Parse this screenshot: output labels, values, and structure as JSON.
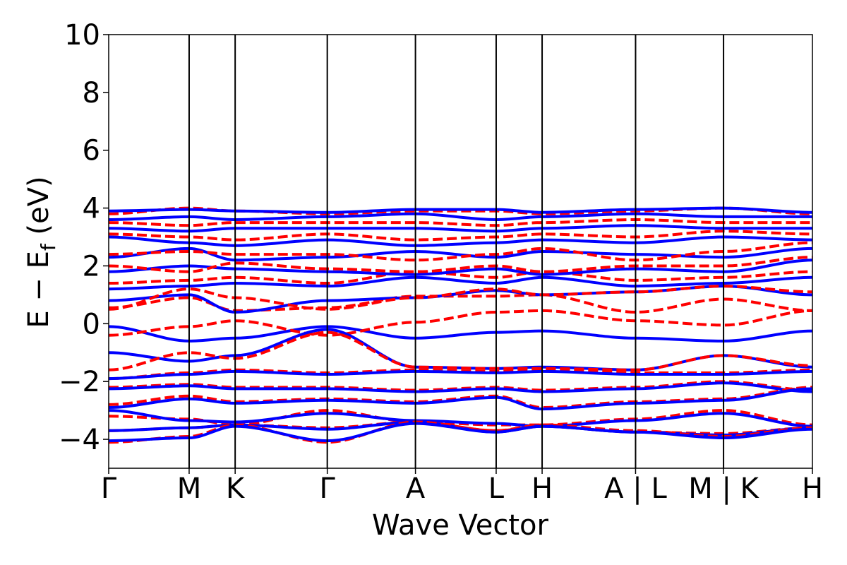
{
  "chart_data": {
    "type": "line",
    "xlabel": "Wave Vector",
    "ylabel": "E − E_f (eV)",
    "ylabel_main": "E − E",
    "ylabel_sub": "f",
    "ylabel_unit": " (eV)",
    "ylim": [
      -5,
      10
    ],
    "yticks": [
      {
        "value": -4,
        "label": "−4"
      },
      {
        "value": -2,
        "label": "−2"
      },
      {
        "value": 0,
        "label": "0"
      },
      {
        "value": 2,
        "label": "2"
      },
      {
        "value": 4,
        "label": "4"
      },
      {
        "value": 6,
        "label": "6"
      },
      {
        "value": 8,
        "label": "8"
      },
      {
        "value": 10,
        "label": "10"
      }
    ],
    "xlim": [
      0,
      1
    ],
    "kpoints": [
      {
        "label": "Γ",
        "x": 0.0
      },
      {
        "label": "M",
        "x": 0.1143
      },
      {
        "label": "K",
        "x": 0.1797
      },
      {
        "label": "Γ",
        "x": 0.3106
      },
      {
        "label": "A",
        "x": 0.4359
      },
      {
        "label": "L",
        "x": 0.5506
      },
      {
        "label": "H",
        "x": 0.6159
      },
      {
        "label": "A | L",
        "x": 0.7487
      },
      {
        "label": "M | K",
        "x": 0.8737
      },
      {
        "label": "H",
        "x": 1.0
      }
    ],
    "grid": false,
    "legend": "none",
    "colors": {
      "series_solid": "#0000ff",
      "series_dashed": "#ff0000"
    },
    "series": [
      {
        "style": "solid",
        "color": "#0000ff",
        "x": [
          0,
          0.1143,
          0.1797,
          0.3106,
          0.4359,
          0.5506,
          0.6159,
          0.7487,
          0.8737,
          1.0
        ],
        "y": [
          -0.1,
          -0.6,
          -0.5,
          -0.1,
          -0.5,
          -0.3,
          -0.25,
          -0.5,
          -0.6,
          -0.25
        ]
      },
      {
        "style": "dashed",
        "color": "#ff0000",
        "x": [
          0,
          0.1143,
          0.1797,
          0.3106,
          0.4359,
          0.5506,
          0.6159,
          0.7487,
          0.8737,
          1.0
        ],
        "y": [
          -0.4,
          -0.1,
          0.1,
          -0.4,
          0.05,
          0.4,
          0.45,
          0.1,
          -0.05,
          0.45
        ]
      },
      {
        "style": "dashed",
        "color": "#ff0000",
        "x": [
          0,
          0.1143,
          0.1797,
          0.3106,
          0.4359,
          0.5506,
          0.6159,
          0.7487,
          0.8737,
          1.0
        ],
        "y": [
          0.55,
          0.9,
          0.45,
          0.55,
          0.95,
          0.95,
          1.0,
          0.4,
          0.85,
          0.45
        ]
      },
      {
        "style": "solid",
        "color": "#0000ff",
        "x": [
          0,
          0.1143,
          0.1797,
          0.3106,
          0.4359,
          0.5506,
          0.6159,
          0.7487,
          0.8737,
          1.0
        ],
        "y": [
          -1.0,
          -1.3,
          -1.1,
          -0.2,
          -1.5,
          -1.55,
          -1.5,
          -1.6,
          -1.1,
          -1.5
        ]
      },
      {
        "style": "dashed",
        "color": "#ff0000",
        "x": [
          0,
          0.1143,
          0.1797,
          0.3106,
          0.4359,
          0.5506,
          0.6159,
          0.7487,
          0.8737,
          1.0
        ],
        "y": [
          -1.6,
          -1.0,
          -1.2,
          -0.3,
          -1.5,
          -1.55,
          -1.55,
          -1.6,
          -1.1,
          -1.45
        ]
      },
      {
        "style": "dashed",
        "color": "#ff0000",
        "x": [
          0,
          0.1143,
          0.1797,
          0.3106,
          0.4359,
          0.5506,
          0.6159,
          0.7487,
          0.8737,
          1.0
        ],
        "y": [
          -1.9,
          -1.7,
          -1.6,
          -1.7,
          -1.6,
          -1.65,
          -1.6,
          -1.7,
          -1.7,
          -1.6
        ]
      },
      {
        "style": "solid",
        "color": "#0000ff",
        "x": [
          0,
          0.1143,
          0.1797,
          0.3106,
          0.4359,
          0.5506,
          0.6159,
          0.7487,
          0.8737,
          1.0
        ],
        "y": [
          -1.9,
          -1.75,
          -1.65,
          -1.75,
          -1.65,
          -1.7,
          -1.65,
          -1.75,
          -1.75,
          -1.65
        ]
      },
      {
        "style": "dashed",
        "color": "#ff0000",
        "x": [
          0,
          0.1143,
          0.1797,
          0.3106,
          0.4359,
          0.5506,
          0.6159,
          0.7487,
          0.8737,
          1.0
        ],
        "y": [
          -2.2,
          -2.1,
          -2.2,
          -2.2,
          -2.3,
          -2.2,
          -2.3,
          -2.2,
          -2.0,
          -2.3
        ]
      },
      {
        "style": "solid",
        "color": "#0000ff",
        "x": [
          0,
          0.1143,
          0.1797,
          0.3106,
          0.4359,
          0.5506,
          0.6159,
          0.7487,
          0.8737,
          1.0
        ],
        "y": [
          -2.25,
          -2.15,
          -2.25,
          -2.25,
          -2.35,
          -2.25,
          -2.35,
          -2.25,
          -2.05,
          -2.35
        ]
      },
      {
        "style": "dashed",
        "color": "#ff0000",
        "x": [
          0,
          0.1143,
          0.1797,
          0.3106,
          0.4359,
          0.5506,
          0.6159,
          0.7487,
          0.8737,
          1.0
        ],
        "y": [
          -2.8,
          -2.5,
          -2.7,
          -2.6,
          -2.7,
          -2.5,
          -2.9,
          -2.7,
          -2.6,
          -2.2
        ]
      },
      {
        "style": "solid",
        "color": "#0000ff",
        "x": [
          0,
          0.1143,
          0.1797,
          0.3106,
          0.4359,
          0.5506,
          0.6159,
          0.7487,
          0.8737,
          1.0
        ],
        "y": [
          -2.9,
          -2.6,
          -2.75,
          -2.65,
          -2.75,
          -2.55,
          -2.95,
          -2.75,
          -2.65,
          -2.25
        ]
      },
      {
        "style": "dashed",
        "color": "#ff0000",
        "x": [
          0,
          0.1143,
          0.1797,
          0.3106,
          0.4359,
          0.5506,
          0.6159,
          0.7487,
          0.8737,
          1.0
        ],
        "y": [
          -3.2,
          -3.3,
          -3.5,
          -3.0,
          -3.4,
          -3.5,
          -3.5,
          -3.3,
          -3.0,
          -3.5
        ]
      },
      {
        "style": "solid",
        "color": "#0000ff",
        "x": [
          0,
          0.1143,
          0.1797,
          0.3106,
          0.4359,
          0.5506,
          0.6159,
          0.7487,
          0.8737,
          1.0
        ],
        "y": [
          -3.0,
          -3.35,
          -3.4,
          -3.1,
          -3.35,
          -3.45,
          -3.55,
          -3.35,
          -3.1,
          -3.55
        ]
      },
      {
        "style": "dashed",
        "color": "#ff0000",
        "x": [
          0,
          0.1143,
          0.1797,
          0.3106,
          0.4359,
          0.5506,
          0.6159,
          0.7487,
          0.8737,
          1.0
        ],
        "y": [
          -3.7,
          -3.6,
          -3.5,
          -3.6,
          -3.4,
          -3.7,
          -3.55,
          -3.75,
          -3.8,
          -3.6
        ]
      },
      {
        "style": "solid",
        "color": "#0000ff",
        "x": [
          0,
          0.1143,
          0.1797,
          0.3106,
          0.4359,
          0.5506,
          0.6159,
          0.7487,
          0.8737,
          1.0
        ],
        "y": [
          -3.7,
          -3.6,
          -3.5,
          -3.65,
          -3.4,
          -3.75,
          -3.55,
          -3.75,
          -3.85,
          -3.6
        ]
      },
      {
        "style": "dashed",
        "color": "#ff0000",
        "x": [
          0,
          0.1143,
          0.1797,
          0.3106,
          0.4359,
          0.5506,
          0.6159,
          0.7487,
          0.8737,
          1.0
        ],
        "y": [
          -4.1,
          -3.9,
          -3.5,
          -4.1,
          -3.4,
          -3.7,
          -3.5,
          -3.7,
          -3.9,
          -3.6
        ]
      },
      {
        "style": "solid",
        "color": "#0000ff",
        "x": [
          0,
          0.1143,
          0.1797,
          0.3106,
          0.4359,
          0.5506,
          0.6159,
          0.7487,
          0.8737,
          1.0
        ],
        "y": [
          -4.05,
          -3.95,
          -3.55,
          -4.05,
          -3.45,
          -3.75,
          -3.55,
          -3.75,
          -3.95,
          -3.65
        ]
      },
      {
        "style": "solid",
        "color": "#0000ff",
        "x": [
          0,
          0.1143,
          0.1797,
          0.3106,
          0.4359,
          0.5506,
          0.6159,
          0.7487,
          0.8737,
          1.0
        ],
        "y": [
          0.8,
          1.0,
          0.4,
          0.8,
          0.9,
          1.15,
          1.0,
          1.1,
          1.3,
          1.0
        ]
      },
      {
        "style": "dashed",
        "color": "#ff0000",
        "x": [
          0,
          0.1143,
          0.1797,
          0.3106,
          0.4359,
          0.5506,
          0.6159,
          0.7487,
          0.8737,
          1.0
        ],
        "y": [
          0.5,
          1.2,
          0.9,
          0.5,
          0.9,
          1.2,
          1.0,
          1.1,
          1.3,
          1.1
        ]
      },
      {
        "style": "solid",
        "color": "#0000ff",
        "x": [
          0,
          0.1143,
          0.1797,
          0.3106,
          0.4359,
          0.5506,
          0.6159,
          0.7487,
          0.8737,
          1.0
        ],
        "y": [
          1.2,
          1.3,
          1.4,
          1.3,
          1.6,
          1.4,
          1.6,
          1.3,
          1.4,
          1.6
        ]
      },
      {
        "style": "dashed",
        "color": "#ff0000",
        "x": [
          0,
          0.1143,
          0.1797,
          0.3106,
          0.4359,
          0.5506,
          0.6159,
          0.7487,
          0.8737,
          1.0
        ],
        "y": [
          1.4,
          1.5,
          1.6,
          1.4,
          1.8,
          1.6,
          1.8,
          1.5,
          1.6,
          1.8
        ]
      },
      {
        "style": "solid",
        "color": "#0000ff",
        "x": [
          0,
          0.1143,
          0.1797,
          0.3106,
          0.4359,
          0.5506,
          0.6159,
          0.7487,
          0.8737,
          1.0
        ],
        "y": [
          1.8,
          2.0,
          1.9,
          1.8,
          1.7,
          1.9,
          1.7,
          1.9,
          1.8,
          2.2
        ]
      },
      {
        "style": "dashed",
        "color": "#ff0000",
        "x": [
          0,
          0.1143,
          0.1797,
          0.3106,
          0.4359,
          0.5506,
          0.6159,
          0.7487,
          0.8737,
          1.0
        ],
        "y": [
          2.0,
          1.8,
          2.1,
          1.9,
          1.8,
          2.0,
          1.8,
          2.0,
          2.0,
          2.3
        ]
      },
      {
        "style": "solid",
        "color": "#0000ff",
        "x": [
          0,
          0.1143,
          0.1797,
          0.3106,
          0.4359,
          0.5506,
          0.6159,
          0.7487,
          0.8737,
          1.0
        ],
        "y": [
          2.3,
          2.6,
          2.2,
          2.3,
          2.5,
          2.3,
          2.5,
          2.4,
          2.3,
          2.6
        ]
      },
      {
        "style": "dashed",
        "color": "#ff0000",
        "x": [
          0,
          0.1143,
          0.1797,
          0.3106,
          0.4359,
          0.5506,
          0.6159,
          0.7487,
          0.8737,
          1.0
        ],
        "y": [
          2.4,
          2.5,
          2.4,
          2.4,
          2.2,
          2.4,
          2.6,
          2.2,
          2.5,
          2.8
        ]
      },
      {
        "style": "solid",
        "color": "#0000ff",
        "x": [
          0,
          0.1143,
          0.1797,
          0.3106,
          0.4359,
          0.5506,
          0.6159,
          0.7487,
          0.8737,
          1.0
        ],
        "y": [
          3.0,
          2.8,
          2.7,
          2.9,
          2.7,
          2.8,
          2.9,
          2.8,
          3.0,
          2.9
        ]
      },
      {
        "style": "dashed",
        "color": "#ff0000",
        "x": [
          0,
          0.1143,
          0.1797,
          0.3106,
          0.4359,
          0.5506,
          0.6159,
          0.7487,
          0.8737,
          1.0
        ],
        "y": [
          3.1,
          3.0,
          2.9,
          3.1,
          2.9,
          3.0,
          3.1,
          3.0,
          3.2,
          3.1
        ]
      },
      {
        "style": "solid",
        "color": "#0000ff",
        "x": [
          0,
          0.1143,
          0.1797,
          0.3106,
          0.4359,
          0.5506,
          0.6159,
          0.7487,
          0.8737,
          1.0
        ],
        "y": [
          3.3,
          3.2,
          3.3,
          3.3,
          3.3,
          3.2,
          3.3,
          3.4,
          3.3,
          3.3
        ]
      },
      {
        "style": "dashed",
        "color": "#ff0000",
        "x": [
          0,
          0.1143,
          0.1797,
          0.3106,
          0.4359,
          0.5506,
          0.6159,
          0.7487,
          0.8737,
          1.0
        ],
        "y": [
          3.5,
          3.4,
          3.5,
          3.5,
          3.5,
          3.4,
          3.5,
          3.6,
          3.5,
          3.5
        ]
      },
      {
        "style": "solid",
        "color": "#0000ff",
        "x": [
          0,
          0.1143,
          0.1797,
          0.3106,
          0.4359,
          0.5506,
          0.6159,
          0.7487,
          0.8737,
          1.0
        ],
        "y": [
          3.6,
          3.7,
          3.6,
          3.7,
          3.8,
          3.6,
          3.7,
          3.8,
          3.7,
          3.7
        ]
      },
      {
        "style": "dashed",
        "color": "#ff0000",
        "x": [
          0,
          0.1143,
          0.1797,
          0.3106,
          0.4359,
          0.5506,
          0.6159,
          0.7487,
          0.8737,
          1.0
        ],
        "y": [
          3.8,
          4.0,
          3.9,
          3.8,
          3.9,
          3.9,
          3.8,
          3.9,
          4.0,
          3.8
        ]
      },
      {
        "style": "solid",
        "color": "#0000ff",
        "x": [
          0,
          0.1143,
          0.1797,
          0.3106,
          0.4359,
          0.5506,
          0.6159,
          0.7487,
          0.8737,
          1.0
        ],
        "y": [
          3.9,
          3.95,
          3.9,
          3.85,
          3.95,
          3.95,
          3.85,
          3.95,
          4.0,
          3.85
        ]
      }
    ]
  }
}
